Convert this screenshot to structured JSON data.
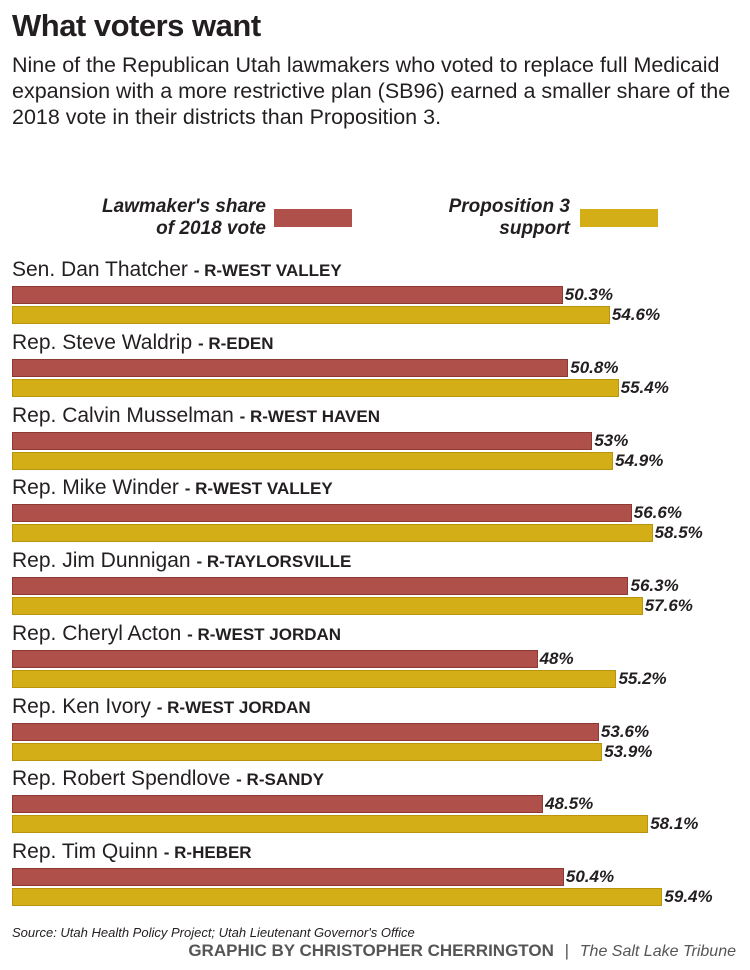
{
  "chart_data": {
    "type": "bar",
    "orientation": "horizontal",
    "title": "What voters want",
    "subtitle": "Nine of the Republican Utah lawmakers who voted to replace full Medicaid expansion with a more restrictive plan (SB96) earned a smaller share of the 2018 vote in their districts than Proposition 3.",
    "legend": [
      {
        "name": "Lawmaker's share of 2018 vote",
        "color": "#b0504a"
      },
      {
        "name": "Proposition 3 support",
        "color": "#d4ae16"
      }
    ],
    "categories": [
      {
        "name": "Sen. Dan Thatcher",
        "district": "- R-WEST VALLEY"
      },
      {
        "name": "Rep. Steve Waldrip",
        "district": "- R-EDEN"
      },
      {
        "name": "Rep. Calvin Musselman",
        "district": "- R-WEST HAVEN"
      },
      {
        "name": "Rep. Mike Winder",
        "district": "- R-WEST VALLEY"
      },
      {
        "name": "Rep. Jim Dunnigan",
        "district": "- R-TAYLORSVILLE"
      },
      {
        "name": "Rep. Cheryl Acton",
        "district": "- R-WEST JORDAN"
      },
      {
        "name": "Rep. Ken Ivory",
        "district": "- R-WEST JORDAN"
      },
      {
        "name": "Rep. Robert Spendlove",
        "district": "- R-SANDY"
      },
      {
        "name": "Rep. Tim Quinn",
        "district": "- R-HEBER"
      }
    ],
    "series": [
      {
        "name": "Lawmaker's share of 2018 vote",
        "values": [
          50.3,
          50.8,
          53,
          56.6,
          56.3,
          48,
          53.6,
          48.5,
          50.4
        ],
        "labels": [
          "50.3%",
          "50.8%",
          "53%",
          "56.6%",
          "56.3%",
          "48%",
          "53.6%",
          "48.5%",
          "50.4%"
        ]
      },
      {
        "name": "Proposition 3 support",
        "values": [
          54.6,
          55.4,
          54.9,
          58.5,
          57.6,
          55.2,
          53.9,
          58.1,
          59.4
        ],
        "labels": [
          "54.6%",
          "55.4%",
          "54.9%",
          "58.5%",
          "57.6%",
          "55.2%",
          "53.9%",
          "58.1%",
          "59.4%"
        ]
      }
    ],
    "xlim": [
      0,
      66
    ],
    "grid": false,
    "legend_placement": "top"
  },
  "legend_text": {
    "lawmaker_line1": "Lawmaker's share",
    "lawmaker_line2": "of 2018 vote",
    "prop_line1": "Proposition 3",
    "prop_line2": "support"
  },
  "footer": {
    "source": "Source: Utah Health Policy Project; Utah Lieutenant Governor's Office",
    "credit": "GRAPHIC BY CHRISTOPHER CHERRINGTON",
    "separator": "|",
    "publication": "The Salt Lake Tribune"
  }
}
